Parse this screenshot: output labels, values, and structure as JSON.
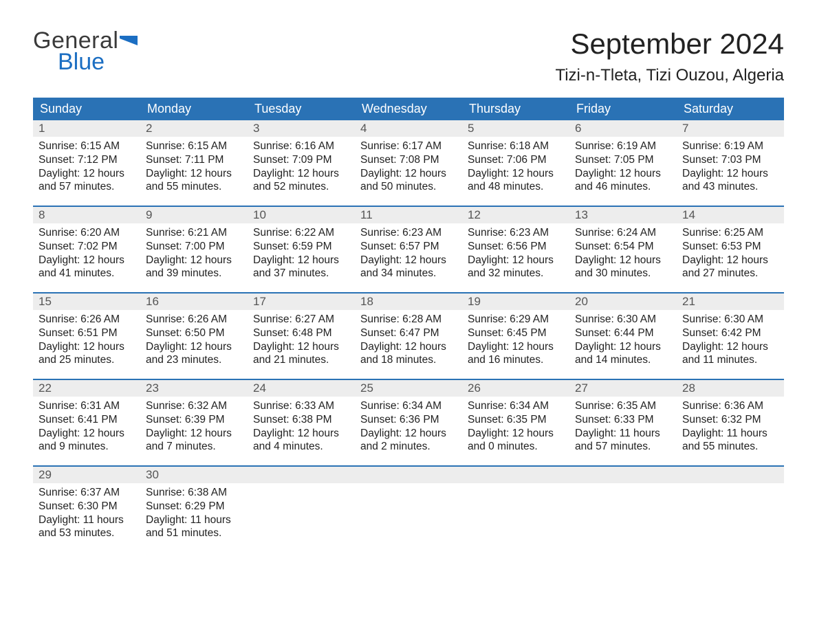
{
  "logo": {
    "line1": "General",
    "line2": "Blue"
  },
  "title": "September 2024",
  "location": "Tizi-n-Tleta, Tizi Ouzou, Algeria",
  "colors": {
    "header_bg": "#2a72b5",
    "header_text": "#ffffff",
    "daynum_bg": "#ededed",
    "daynum_text": "#555555",
    "body_text": "#222222",
    "week_border": "#2a72b5",
    "logo_gray": "#3a3a3a",
    "logo_blue": "#1b6ec2",
    "page_bg": "#ffffff"
  },
  "typography": {
    "title_fontsize": 42,
    "location_fontsize": 24,
    "weekday_fontsize": 18,
    "daynum_fontsize": 17,
    "body_fontsize": 15.5,
    "logo_fontsize": 34
  },
  "weekdays": [
    "Sunday",
    "Monday",
    "Tuesday",
    "Wednesday",
    "Thursday",
    "Friday",
    "Saturday"
  ],
  "days": [
    {
      "n": 1,
      "sunrise": "6:15 AM",
      "sunset": "7:12 PM",
      "dl1": "12 hours",
      "dl2": "57 minutes."
    },
    {
      "n": 2,
      "sunrise": "6:15 AM",
      "sunset": "7:11 PM",
      "dl1": "12 hours",
      "dl2": "55 minutes."
    },
    {
      "n": 3,
      "sunrise": "6:16 AM",
      "sunset": "7:09 PM",
      "dl1": "12 hours",
      "dl2": "52 minutes."
    },
    {
      "n": 4,
      "sunrise": "6:17 AM",
      "sunset": "7:08 PM",
      "dl1": "12 hours",
      "dl2": "50 minutes."
    },
    {
      "n": 5,
      "sunrise": "6:18 AM",
      "sunset": "7:06 PM",
      "dl1": "12 hours",
      "dl2": "48 minutes."
    },
    {
      "n": 6,
      "sunrise": "6:19 AM",
      "sunset": "7:05 PM",
      "dl1": "12 hours",
      "dl2": "46 minutes."
    },
    {
      "n": 7,
      "sunrise": "6:19 AM",
      "sunset": "7:03 PM",
      "dl1": "12 hours",
      "dl2": "43 minutes."
    },
    {
      "n": 8,
      "sunrise": "6:20 AM",
      "sunset": "7:02 PM",
      "dl1": "12 hours",
      "dl2": "41 minutes."
    },
    {
      "n": 9,
      "sunrise": "6:21 AM",
      "sunset": "7:00 PM",
      "dl1": "12 hours",
      "dl2": "39 minutes."
    },
    {
      "n": 10,
      "sunrise": "6:22 AM",
      "sunset": "6:59 PM",
      "dl1": "12 hours",
      "dl2": "37 minutes."
    },
    {
      "n": 11,
      "sunrise": "6:23 AM",
      "sunset": "6:57 PM",
      "dl1": "12 hours",
      "dl2": "34 minutes."
    },
    {
      "n": 12,
      "sunrise": "6:23 AM",
      "sunset": "6:56 PM",
      "dl1": "12 hours",
      "dl2": "32 minutes."
    },
    {
      "n": 13,
      "sunrise": "6:24 AM",
      "sunset": "6:54 PM",
      "dl1": "12 hours",
      "dl2": "30 minutes."
    },
    {
      "n": 14,
      "sunrise": "6:25 AM",
      "sunset": "6:53 PM",
      "dl1": "12 hours",
      "dl2": "27 minutes."
    },
    {
      "n": 15,
      "sunrise": "6:26 AM",
      "sunset": "6:51 PM",
      "dl1": "12 hours",
      "dl2": "25 minutes."
    },
    {
      "n": 16,
      "sunrise": "6:26 AM",
      "sunset": "6:50 PM",
      "dl1": "12 hours",
      "dl2": "23 minutes."
    },
    {
      "n": 17,
      "sunrise": "6:27 AM",
      "sunset": "6:48 PM",
      "dl1": "12 hours",
      "dl2": "21 minutes."
    },
    {
      "n": 18,
      "sunrise": "6:28 AM",
      "sunset": "6:47 PM",
      "dl1": "12 hours",
      "dl2": "18 minutes."
    },
    {
      "n": 19,
      "sunrise": "6:29 AM",
      "sunset": "6:45 PM",
      "dl1": "12 hours",
      "dl2": "16 minutes."
    },
    {
      "n": 20,
      "sunrise": "6:30 AM",
      "sunset": "6:44 PM",
      "dl1": "12 hours",
      "dl2": "14 minutes."
    },
    {
      "n": 21,
      "sunrise": "6:30 AM",
      "sunset": "6:42 PM",
      "dl1": "12 hours",
      "dl2": "11 minutes."
    },
    {
      "n": 22,
      "sunrise": "6:31 AM",
      "sunset": "6:41 PM",
      "dl1": "12 hours",
      "dl2": "9 minutes."
    },
    {
      "n": 23,
      "sunrise": "6:32 AM",
      "sunset": "6:39 PM",
      "dl1": "12 hours",
      "dl2": "7 minutes."
    },
    {
      "n": 24,
      "sunrise": "6:33 AM",
      "sunset": "6:38 PM",
      "dl1": "12 hours",
      "dl2": "4 minutes."
    },
    {
      "n": 25,
      "sunrise": "6:34 AM",
      "sunset": "6:36 PM",
      "dl1": "12 hours",
      "dl2": "2 minutes."
    },
    {
      "n": 26,
      "sunrise": "6:34 AM",
      "sunset": "6:35 PM",
      "dl1": "12 hours",
      "dl2": "0 minutes."
    },
    {
      "n": 27,
      "sunrise": "6:35 AM",
      "sunset": "6:33 PM",
      "dl1": "11 hours",
      "dl2": "57 minutes."
    },
    {
      "n": 28,
      "sunrise": "6:36 AM",
      "sunset": "6:32 PM",
      "dl1": "11 hours",
      "dl2": "55 minutes."
    },
    {
      "n": 29,
      "sunrise": "6:37 AM",
      "sunset": "6:30 PM",
      "dl1": "11 hours",
      "dl2": "53 minutes."
    },
    {
      "n": 30,
      "sunrise": "6:38 AM",
      "sunset": "6:29 PM",
      "dl1": "11 hours",
      "dl2": "51 minutes."
    }
  ],
  "labels": {
    "sunrise": "Sunrise:",
    "sunset": "Sunset:",
    "daylight": "Daylight:",
    "and": "and"
  },
  "layout": {
    "weeks": 5,
    "start_offset": 0,
    "trailing_blanks": 5
  }
}
